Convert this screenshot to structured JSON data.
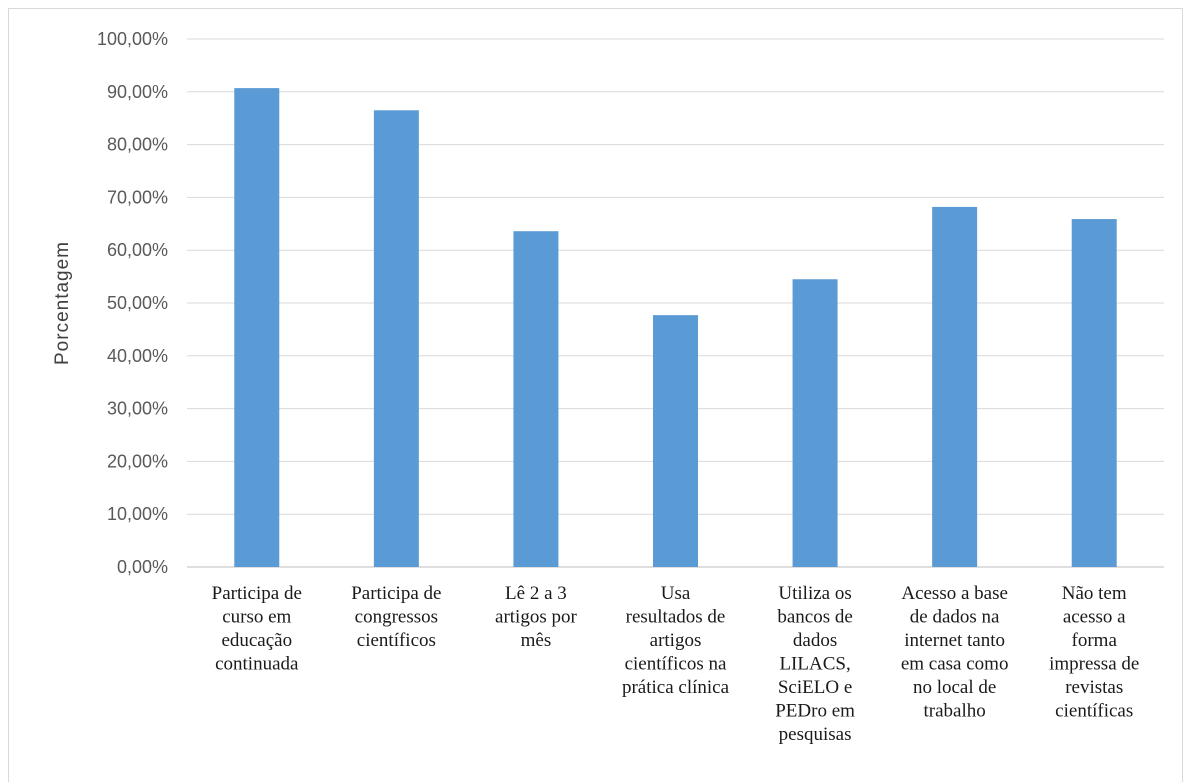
{
  "chart_data": {
    "type": "bar",
    "title": "",
    "xlabel": "",
    "ylabel": "Porcentagem",
    "ylim": [
      0,
      100
    ],
    "ytick_step": 10,
    "ytick_format": "percent_2dec_comma",
    "grid": true,
    "legend": "none",
    "bar_color": "#5B9BD5",
    "grid_color": "#d9d9d9",
    "categories": [
      [
        "Participa de",
        "curso em",
        "educação",
        "continuada"
      ],
      [
        "Participa de",
        "congressos",
        "científicos"
      ],
      [
        "Lê 2 a 3",
        "artigos por",
        "mês"
      ],
      [
        "Usa",
        "resultados de",
        "artigos",
        "científicos na",
        "prática clínica"
      ],
      [
        "Utiliza os",
        "bancos de",
        "dados",
        "LILACS,",
        "SciELO e",
        "PEDro em",
        "pesquisas"
      ],
      [
        "Acesso a base",
        "de dados na",
        "internet tanto",
        "em casa como",
        "no local de",
        "trabalho"
      ],
      [
        "Não tem",
        "acesso  a",
        "forma",
        "impressa de",
        "revistas",
        "científicas"
      ]
    ],
    "values": [
      90.7,
      86.5,
      63.6,
      47.7,
      54.5,
      68.2,
      65.9
    ]
  }
}
